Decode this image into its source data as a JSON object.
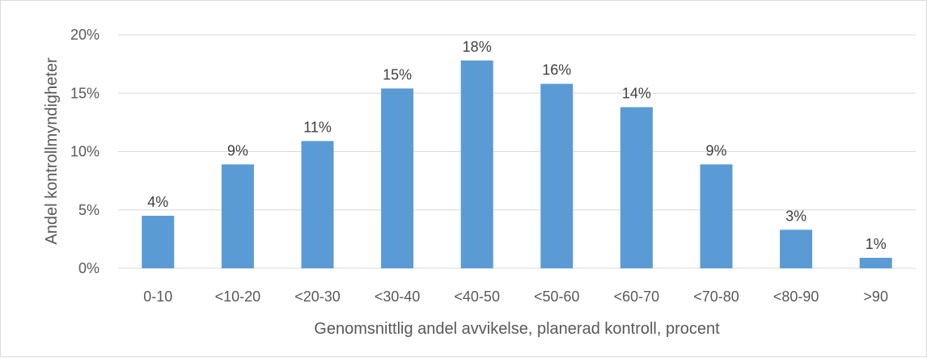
{
  "chart_data": {
    "type": "bar",
    "categories": [
      "0-10",
      "<10-20",
      "<20-30",
      "<30-40",
      "<40-50",
      "<50-60",
      "<60-70",
      "<70-80",
      "<80-90",
      ">90"
    ],
    "values": [
      4.5,
      8.9,
      10.9,
      15.4,
      17.8,
      15.8,
      13.8,
      8.9,
      3.3,
      0.9
    ],
    "data_labels": [
      "4%",
      "9%",
      "11%",
      "15%",
      "18%",
      "16%",
      "14%",
      "9%",
      "3%",
      "1%"
    ],
    "xlabel": "Genomsnittlig andel avvikelse, planerad kontroll, procent",
    "ylabel": "Andel kontrollmyndigheter",
    "ylim": [
      0,
      20
    ],
    "yticks": [
      0,
      5,
      10,
      15,
      20
    ],
    "ytick_labels": [
      "0%",
      "5%",
      "10%",
      "15%",
      "20%"
    ],
    "grid": true,
    "bar_color": "#5b9bd5",
    "grid_color": "#d9d9d9"
  }
}
